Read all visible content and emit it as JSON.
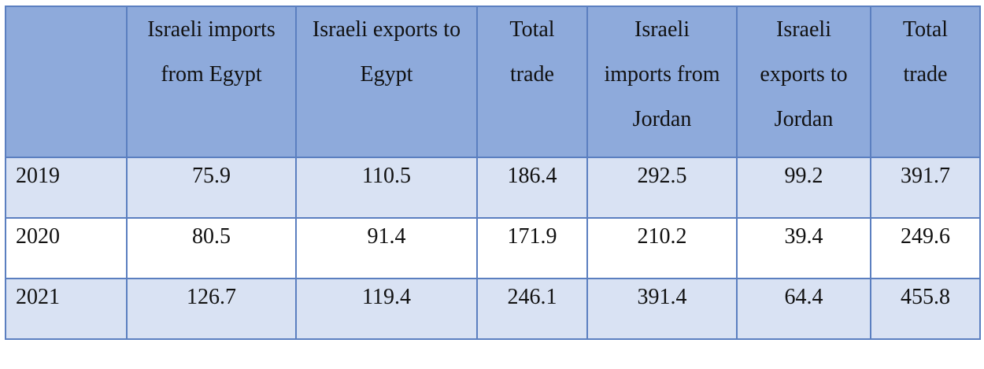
{
  "table": {
    "headers": [
      "Israeli imports from Egypt",
      "Israeli exports to Egypt",
      "Total trade",
      "Israeli imports from Jordan",
      "Israeli exports to Jordan",
      "Total trade"
    ],
    "rows": [
      [
        2019,
        75.9,
        110.5,
        186.4,
        292.5,
        99.2,
        391.7
      ],
      [
        2020,
        80.5,
        91.4,
        171.9,
        210.2,
        39.4,
        249.6
      ],
      [
        2021,
        126.7,
        119.4,
        246.1,
        391.4,
        64.4,
        455.8
      ]
    ]
  }
}
